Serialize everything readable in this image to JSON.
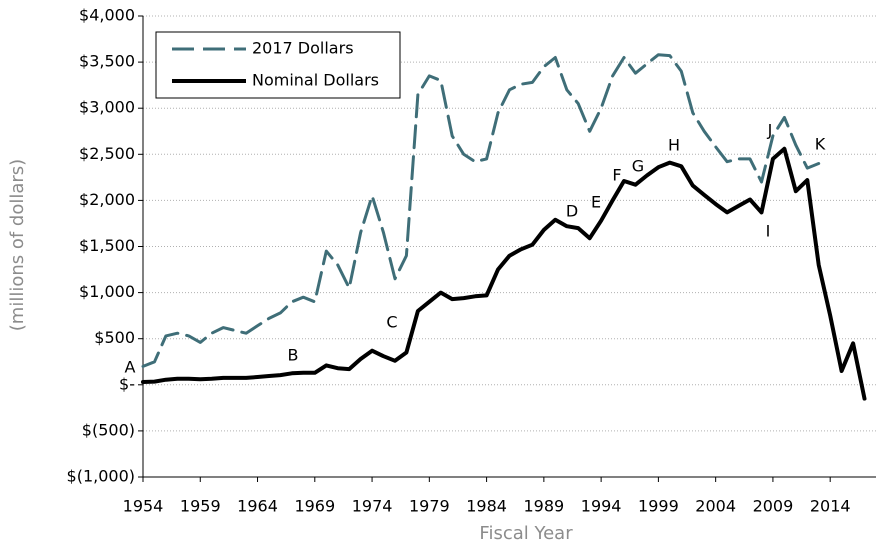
{
  "chart_data": {
    "type": "line",
    "x_label": "Fiscal Year",
    "y_label": "(millions of dollars)",
    "x": [
      1954,
      1955,
      1956,
      1957,
      1958,
      1959,
      1960,
      1961,
      1962,
      1963,
      1964,
      1965,
      1966,
      1967,
      1968,
      1969,
      1970,
      1971,
      1972,
      1973,
      1974,
      1975,
      1976,
      1977,
      1978,
      1979,
      1980,
      1981,
      1982,
      1983,
      1984,
      1985,
      1986,
      1987,
      1988,
      1989,
      1990,
      1991,
      1992,
      1993,
      1994,
      1995,
      1996,
      1997,
      1998,
      1999,
      2000,
      2001,
      2002,
      2003,
      2004,
      2005,
      2006,
      2007,
      2008,
      2009,
      2010,
      2011,
      2012,
      2013,
      2014,
      2015,
      2016,
      2017,
      2018
    ],
    "series": [
      {
        "name": "2017 Dollars",
        "color": "#3f6e78",
        "dashed": true,
        "values": [
          200,
          250,
          530,
          560,
          530,
          460,
          560,
          620,
          590,
          560,
          640,
          720,
          780,
          900,
          950,
          900,
          1450,
          1300,
          1050,
          1650,
          2050,
          1650,
          1150,
          1400,
          3150,
          3350,
          3300,
          2700,
          2500,
          2420,
          2450,
          2950,
          3200,
          3260,
          3280,
          3450,
          3550,
          3200,
          3050,
          2750,
          3000,
          3350,
          3550,
          3380,
          3480,
          3580,
          3570,
          3400,
          2950,
          2750,
          2580,
          2420,
          2450,
          2450,
          2200,
          2700,
          2900,
          2600,
          2350,
          2400,
          null,
          null,
          null,
          null,
          null
        ]
      },
      {
        "name": "Nominal Dollars",
        "color": "#000000",
        "dashed": false,
        "values": [
          30,
          35,
          55,
          65,
          65,
          60,
          65,
          75,
          75,
          75,
          85,
          95,
          105,
          125,
          130,
          130,
          210,
          180,
          170,
          280,
          370,
          310,
          260,
          350,
          800,
          900,
          1000,
          930,
          940,
          960,
          970,
          1250,
          1400,
          1470,
          1520,
          1680,
          1790,
          1720,
          1700,
          1590,
          1780,
          2000,
          2210,
          2170,
          2270,
          2360,
          2410,
          2370,
          2160,
          2060,
          1960,
          1870,
          1940,
          2010,
          1870,
          2450,
          2560,
          2100,
          2220,
          1300,
          750,
          150,
          450,
          -150,
          null
        ]
      }
    ],
    "xlim": [
      1954,
      2018
    ],
    "xticks": [
      1954,
      1959,
      1964,
      1969,
      1974,
      1979,
      1984,
      1989,
      1994,
      1999,
      2004,
      2009,
      2014
    ],
    "ylim": [
      -1000,
      4000
    ],
    "yticks": [
      {
        "value": -1000,
        "label": "$(1,000)"
      },
      {
        "value": -500,
        "label": "$(500)"
      },
      {
        "value": 0,
        "label": "$-"
      },
      {
        "value": 500,
        "label": "$500"
      },
      {
        "value": 1000,
        "label": "$1,000"
      },
      {
        "value": 1500,
        "label": "$1,500"
      },
      {
        "value": 2000,
        "label": "$2,000"
      },
      {
        "value": 2500,
        "label": "$2,500"
      },
      {
        "value": 3000,
        "label": "$3,000"
      },
      {
        "value": 3500,
        "label": "$3,500"
      },
      {
        "value": 4000,
        "label": "$4,000"
      }
    ],
    "grid": true,
    "legend": "upper left",
    "annotations": [
      "A",
      "B",
      "C",
      "D",
      "E",
      "F",
      "G",
      "H",
      "I",
      "J",
      "K"
    ]
  }
}
